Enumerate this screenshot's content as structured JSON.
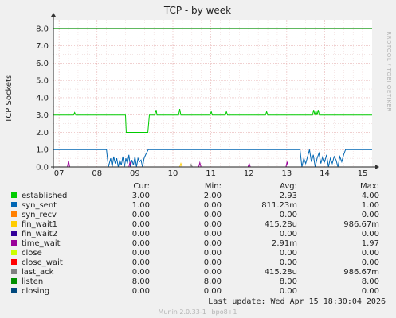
{
  "title": "TCP - by week",
  "side_text": "RRDTOOL / TOBI OETIKER",
  "footer": {
    "last_update": "Last update: Wed Apr 15 18:30:04 2026",
    "munin": "Munin 2.0.33-1~bpo8+1"
  },
  "legend_headers": [
    "Cur:",
    "Min:",
    "Avg:",
    "Max:"
  ],
  "legend": [
    {
      "name": "established",
      "color": "#00cc00",
      "cur": "3.00",
      "min": "2.00",
      "avg": "2.93",
      "max": "4.00"
    },
    {
      "name": "syn_sent",
      "color": "#0066b3",
      "cur": "1.00",
      "min": "0.00",
      "avg": "811.23m",
      "max": "1.00"
    },
    {
      "name": "syn_recv",
      "color": "#ff8000",
      "cur": "0.00",
      "min": "0.00",
      "avg": "0.00",
      "max": "0.00"
    },
    {
      "name": "fin_wait1",
      "color": "#ffcc00",
      "cur": "0.00",
      "min": "0.00",
      "avg": "415.28u",
      "max": "986.67m"
    },
    {
      "name": "fin_wait2",
      "color": "#330099",
      "cur": "0.00",
      "min": "0.00",
      "avg": "0.00",
      "max": "0.00"
    },
    {
      "name": "time_wait",
      "color": "#990099",
      "cur": "0.00",
      "min": "0.00",
      "avg": "2.91m",
      "max": "1.97"
    },
    {
      "name": "close",
      "color": "#ccff00",
      "cur": "0.00",
      "min": "0.00",
      "avg": "0.00",
      "max": "0.00"
    },
    {
      "name": "close_wait",
      "color": "#ff0000",
      "cur": "0.00",
      "min": "0.00",
      "avg": "0.00",
      "max": "0.00"
    },
    {
      "name": "last_ack",
      "color": "#808080",
      "cur": "0.00",
      "min": "0.00",
      "avg": "415.28u",
      "max": "986.67m"
    },
    {
      "name": "listen",
      "color": "#008f00",
      "cur": "8.00",
      "min": "8.00",
      "avg": "8.00",
      "max": "8.00"
    },
    {
      "name": "closing",
      "color": "#00487d",
      "cur": "0.00",
      "min": "0.00",
      "avg": "0.00",
      "max": "0.00"
    }
  ],
  "chart_data": {
    "type": "line",
    "title": "TCP - by week",
    "ylabel": "TCP Sockets",
    "xlabel": "",
    "ylim": [
      0,
      8.5
    ],
    "xlim": [
      6.85,
      15.25
    ],
    "yticks": [
      0,
      1,
      2,
      3,
      4,
      5,
      6,
      7,
      8
    ],
    "ytick_labels": [
      "0.0",
      "1.0",
      "2.0",
      "3.0",
      "4.0",
      "5.0",
      "6.0",
      "7.0",
      "8.0"
    ],
    "xticks": [
      7,
      8,
      9,
      10,
      11,
      12,
      13,
      14,
      15
    ],
    "xtick_labels": [
      "07",
      "08",
      "09",
      "10",
      "11",
      "12",
      "13",
      "14",
      "15"
    ],
    "grid": true,
    "series": [
      {
        "name": "listen",
        "color": "#008f00",
        "x": [
          6.85,
          15.25
        ],
        "y": [
          8,
          8
        ]
      },
      {
        "name": "established",
        "color": "#00cc00",
        "x": [
          6.85,
          7.38,
          7.41,
          7.44,
          8.75,
          8.77,
          9.34,
          9.38,
          9.52,
          9.56,
          9.58,
          9.62,
          10.15,
          10.18,
          10.21,
          10.98,
          11.01,
          11.04,
          11.38,
          11.41,
          11.44,
          12.44,
          12.47,
          12.5,
          13.68,
          13.71,
          13.74,
          13.77,
          13.8,
          13.83,
          13.86,
          13.89,
          15.25
        ],
        "y": [
          3,
          3,
          3.15,
          3,
          3,
          2,
          2,
          3,
          3,
          3.3,
          3,
          3,
          3,
          3.35,
          3,
          3,
          3.2,
          3,
          3,
          3.2,
          3,
          3,
          3.2,
          3,
          3,
          3.3,
          3,
          3.25,
          3,
          3.3,
          3,
          3,
          3
        ]
      },
      {
        "name": "syn_sent",
        "color": "#0066b3",
        "x": [
          6.85,
          8.25,
          8.3,
          8.36,
          8.4,
          8.44,
          8.48,
          8.52,
          8.56,
          8.6,
          8.64,
          8.68,
          8.72,
          8.76,
          8.8,
          8.84,
          8.88,
          8.92,
          8.96,
          9.0,
          9.04,
          9.08,
          9.12,
          9.16,
          9.2,
          9.24,
          9.28,
          9.35,
          9.4,
          13.35,
          13.4,
          13.45,
          13.5,
          13.55,
          13.6,
          13.65,
          13.7,
          13.75,
          13.8,
          13.85,
          13.9,
          13.95,
          14.0,
          14.05,
          14.1,
          14.15,
          14.2,
          14.25,
          14.3,
          14.35,
          14.4,
          14.45,
          14.5,
          14.55,
          14.6,
          15.25
        ],
        "y": [
          1,
          1,
          0,
          0.5,
          0,
          0.6,
          0.2,
          0.5,
          0,
          0.4,
          0.1,
          0.6,
          0,
          0.5,
          0.2,
          0.7,
          0,
          0.4,
          0.1,
          0.6,
          0,
          0.5,
          0.3,
          0.4,
          0,
          0.5,
          0.7,
          1,
          1,
          1,
          0,
          0.5,
          0.2,
          0.6,
          1,
          0.3,
          0.7,
          0,
          0.5,
          0.8,
          0.2,
          0.6,
          0.3,
          0.7,
          0,
          0.5,
          0.2,
          0.6,
          0.4,
          0,
          0.6,
          0.3,
          0.7,
          1,
          1,
          1
        ]
      },
      {
        "name": "time_wait",
        "color": "#990099",
        "x": [
          6.85,
          7.22,
          7.25,
          7.28,
          8.84,
          8.87,
          8.9,
          10.68,
          10.71,
          10.74,
          11.98,
          12.01,
          12.04,
          12.98,
          13.01,
          13.04,
          15.25
        ],
        "y": [
          0,
          0,
          0.35,
          0,
          0,
          0.3,
          0,
          0,
          0.25,
          0,
          0,
          0.2,
          0,
          0,
          0.3,
          0,
          0
        ]
      },
      {
        "name": "fin_wait1",
        "color": "#ffcc00",
        "x": [
          6.85,
          10.18,
          10.21,
          10.24,
          15.25
        ],
        "y": [
          0,
          0,
          0.2,
          0,
          0
        ]
      },
      {
        "name": "last_ack",
        "color": "#808080",
        "x": [
          6.85,
          10.45,
          10.48,
          10.51,
          15.25
        ],
        "y": [
          0,
          0,
          0.15,
          0,
          0
        ]
      }
    ]
  }
}
